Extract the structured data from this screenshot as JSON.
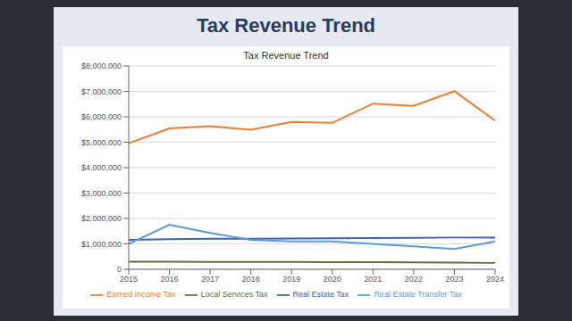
{
  "chart_data": {
    "type": "line",
    "title": "Tax Revenue Trend",
    "subtitle": "Tax Revenue Trend",
    "categories": [
      "2015",
      "2016",
      "2017",
      "2018",
      "2019",
      "2020",
      "2021",
      "2022",
      "2023",
      "2024"
    ],
    "series": [
      {
        "name": "Real Estate Tax",
        "color": "#3f62b0",
        "values": [
          1160000,
          1180000,
          1200000,
          1200000,
          1210000,
          1220000,
          1230000,
          1240000,
          1250000,
          1250000
        ]
      },
      {
        "name": "Earned Income Tax",
        "color": "#ed7d31",
        "values": [
          4960000,
          5540000,
          5630000,
          5490000,
          5800000,
          5760000,
          6520000,
          6430000,
          7010000,
          5850000
        ]
      },
      {
        "name": "Local Services Tax",
        "color": "#5f6e3a",
        "values": [
          300000,
          300000,
          290000,
          290000,
          290000,
          280000,
          280000,
          270000,
          260000,
          250000
        ]
      },
      {
        "name": "Real Estate Transfer Tax",
        "color": "#5b9bd5",
        "values": [
          1000000,
          1750000,
          1430000,
          1160000,
          1100000,
          1100000,
          1000000,
          900000,
          800000,
          1100000
        ]
      }
    ],
    "ylim": [
      0,
      8000000
    ],
    "yticks": [
      0,
      {
        "value": 1000000,
        "label": "$1,000,000"
      },
      {
        "value": 2000000,
        "label": "$2,000,000"
      },
      {
        "value": 3000000,
        "label": "$3,000,000"
      },
      {
        "value": 4000000,
        "label": "$4,000,000"
      },
      {
        "value": 5000000,
        "label": "$5,000,000"
      },
      {
        "value": 6000000,
        "label": "$6,000,000"
      },
      {
        "value": 7000000,
        "label": "$7,000,000"
      },
      {
        "value": 8000000,
        "label": "$8,000,000"
      }
    ],
    "grid": true,
    "legend": "bottom"
  }
}
